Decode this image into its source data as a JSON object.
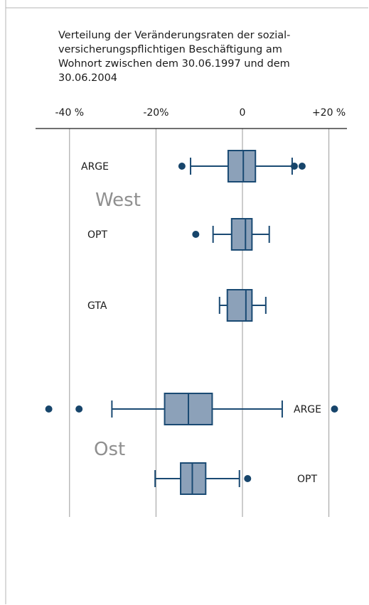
{
  "chart_data": {
    "type": "boxplot",
    "title": "Verteilung der Veränderungsraten der sozial-versicherungspflichtigen Beschäftigung am Wohnort zwischen dem 30.06.1997 und dem 30.06.2004",
    "title_lines": [
      "Verteilung der Veränderungsraten der sozial-",
      "versicherungspflichtigen Beschäftigung am",
      "Wohnort zwischen dem 30.06.1997 und dem",
      "30.06.2004"
    ],
    "x_axis": {
      "unit": "%",
      "range": [
        -50,
        24
      ],
      "ticks": [
        {
          "value": -40,
          "label": "-40 %"
        },
        {
          "value": -20,
          "label": "-20%"
        },
        {
          "value": 0,
          "label": "0"
        },
        {
          "value": 20,
          "label": "+20 %"
        }
      ],
      "gridlines": true
    },
    "groups": [
      {
        "name": "West",
        "rows": [
          0,
          1,
          2
        ]
      },
      {
        "name": "Ost",
        "rows": [
          3,
          4
        ]
      }
    ],
    "series": [
      {
        "label": "ARGE",
        "group": "West",
        "whisker_low": -12,
        "q1": -3.3,
        "median": 0.2,
        "q3": 3,
        "whisker_high": 11.5,
        "outliers": [
          -14,
          12,
          13.8
        ]
      },
      {
        "label": "OPT",
        "group": "West",
        "whisker_low": -6.8,
        "q1": -2.5,
        "median": 0.7,
        "q3": 2.2,
        "whisker_high": 6.2,
        "outliers": [
          -10.8
        ]
      },
      {
        "label": "GTA",
        "group": "West",
        "whisker_low": -5.3,
        "q1": -3.5,
        "median": 0.8,
        "q3": 2.2,
        "whisker_high": 5.4,
        "outliers": []
      },
      {
        "label": "ARGE",
        "group": "Ost",
        "whisker_low": -30.2,
        "q1": -18,
        "median": -12.5,
        "q3": -7,
        "whisker_high": 9.2,
        "outliers": [
          -44.8,
          -37.8,
          21.3
        ]
      },
      {
        "label": "OPT",
        "group": "Ost",
        "whisker_low": -20.2,
        "q1": -14.3,
        "median": -11.6,
        "q3": -8.5,
        "whisker_high": -0.7,
        "outliers": [
          1.2
        ]
      }
    ],
    "colors": {
      "box_fill": "#8ca1b9",
      "stroke": "#1a4a73",
      "outlier": "#17456b",
      "grid": "#9a9a9a",
      "region_label": "#8f8f8f"
    }
  }
}
